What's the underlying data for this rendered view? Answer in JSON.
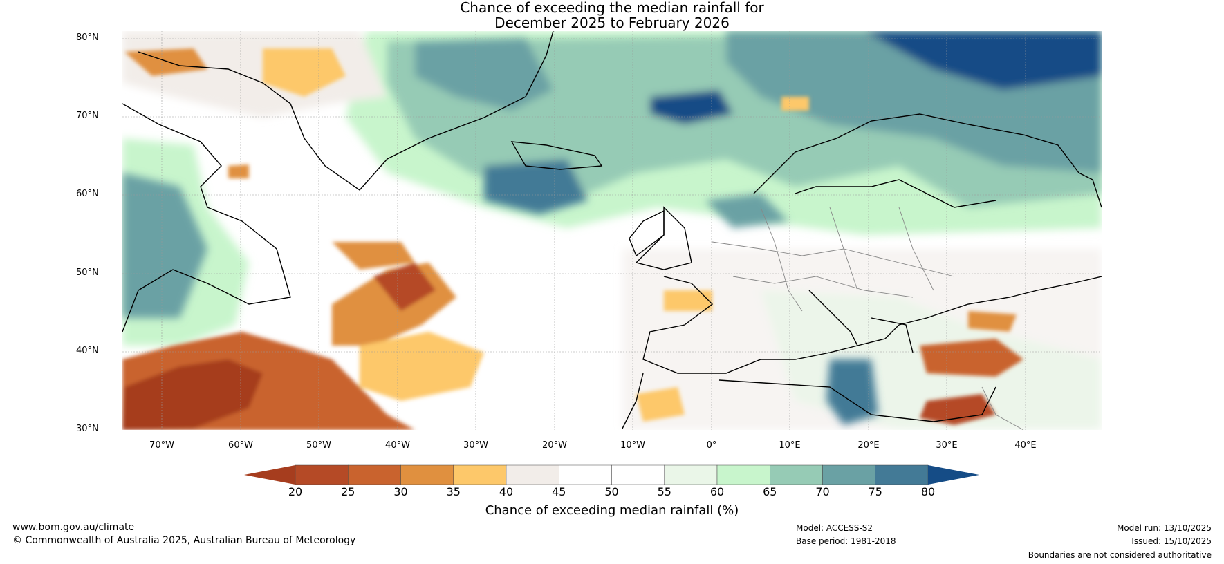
{
  "title_line1": "Chance of exceeding the median rainfall for",
  "title_line2": "December 2025 to February 2026",
  "lat_labels": [
    "80°N",
    "70°N",
    "60°N",
    "50°N",
    "40°N",
    "30°N"
  ],
  "lon_labels": [
    "70°W",
    "60°W",
    "50°W",
    "40°W",
    "30°W",
    "20°W",
    "10°W",
    "0°",
    "10°E",
    "20°E",
    "30°E",
    "40°E"
  ],
  "colorbar": {
    "ticks": [
      "20",
      "25",
      "30",
      "35",
      "40",
      "45",
      "50",
      "55",
      "60",
      "65",
      "70",
      "75",
      "80"
    ],
    "colors": [
      "#a63d1e",
      "#b54a26",
      "#c9632e",
      "#e0903f",
      "#fdc86a",
      "#f2ede9",
      "#ffffff",
      "#ffffff",
      "#eaf6e8",
      "#c8f5cc",
      "#96cbb5",
      "#6aa1a4",
      "#437a96",
      "#154c86"
    ],
    "label": "Chance of exceeding median rainfall (%)"
  },
  "footer": {
    "website": "www.bom.gov.au/climate",
    "copyright": "© Commonwealth of Australia 2025, Australian Bureau of Meteorology",
    "model": "Model: ACCESS-S2",
    "base_period": "Base period: 1981-2018",
    "model_run": "Model run: 13/10/2025",
    "issued": "Issued: 15/10/2025",
    "disclaimer": "Boundaries are not considered authoritative"
  }
}
